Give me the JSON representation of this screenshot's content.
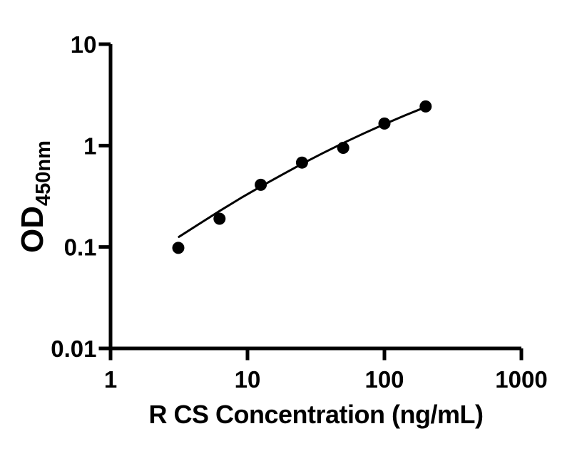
{
  "chart_data": {
    "type": "scatter",
    "title": "",
    "xlabel": "R CS Concentration (ng/mL)",
    "ylabel_text": "OD",
    "ylabel_subscript": "450nm",
    "x_scale": "log10",
    "y_scale": "log10",
    "xlim": [
      1,
      1000
    ],
    "ylim": [
      0.01,
      10
    ],
    "x_tick_values": [
      1,
      10,
      100,
      1000
    ],
    "x_tick_labels": [
      "1",
      "10",
      "100",
      "1000"
    ],
    "y_tick_values": [
      0.01,
      0.1,
      1,
      10
    ],
    "y_tick_labels": [
      "0.01",
      "0.1",
      "1",
      "10"
    ],
    "grid": false,
    "legend": "none",
    "axis_color": "#000000",
    "marker_color": "#000000",
    "line_color": "#000000",
    "background_color": "#ffffff",
    "series": [
      {
        "name": "R CS standard curve points",
        "marker": "filled-circle",
        "x": [
          3.125,
          6.25,
          12.5,
          25,
          50,
          100,
          200
        ],
        "y": [
          0.098,
          0.19,
          0.41,
          0.68,
          0.95,
          1.65,
          2.43
        ]
      }
    ],
    "fit_curve": {
      "name": "fitted standard curve",
      "x": [
        3.16,
        4.47,
        6.31,
        8.91,
        12.6,
        17.8,
        25.1,
        35.5,
        50.1,
        70.8,
        100,
        141,
        200
      ],
      "y": [
        0.126,
        0.17,
        0.228,
        0.303,
        0.397,
        0.515,
        0.662,
        0.843,
        1.06,
        1.32,
        1.627,
        1.984,
        2.399
      ]
    }
  }
}
